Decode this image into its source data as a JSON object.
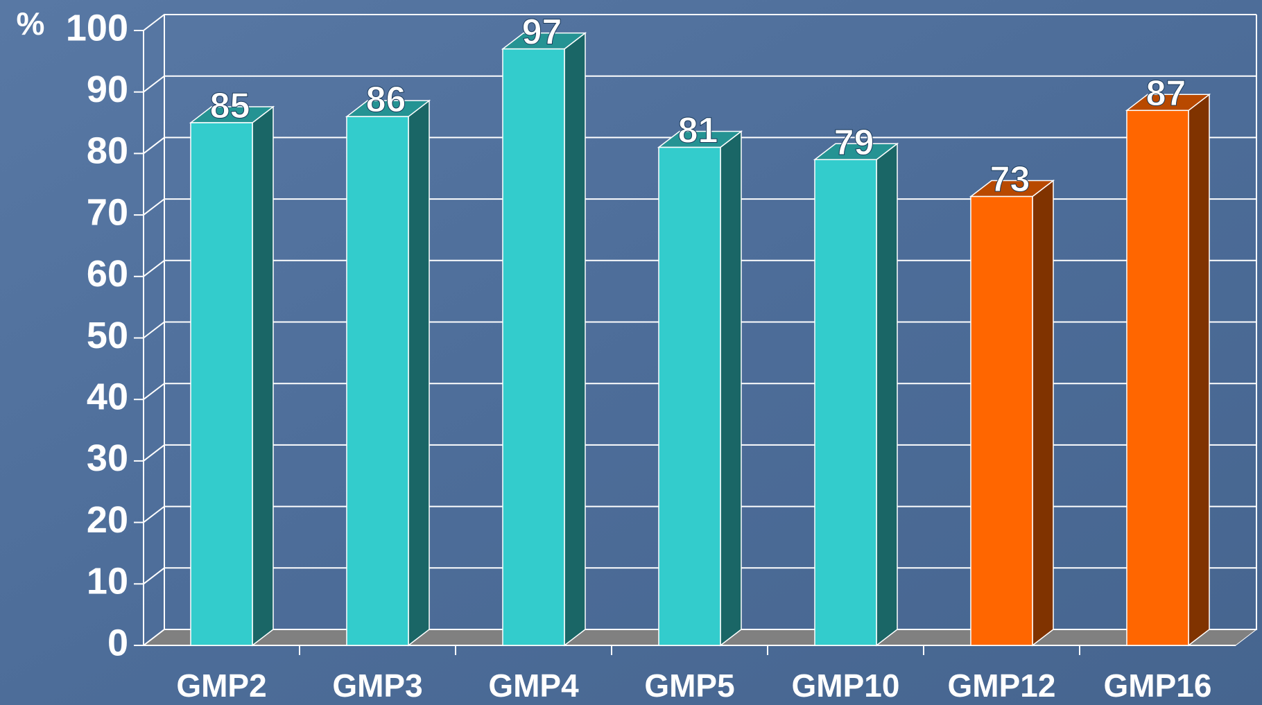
{
  "chart_data": {
    "type": "bar3d",
    "y_label": "%",
    "categories": [
      "GMP2",
      "GMP3",
      "GMP4",
      "GMP5",
      "GMP10",
      "GMP12",
      "GMP16"
    ],
    "values": [
      85,
      86,
      97,
      81,
      79,
      73,
      87
    ],
    "colors": [
      "#33cccc",
      "#33cccc",
      "#33cccc",
      "#33cccc",
      "#33cccc",
      "#ff6600",
      "#ff6600"
    ],
    "ylim": [
      0,
      100
    ],
    "yticks": [
      0,
      10,
      20,
      30,
      40,
      50,
      60,
      70,
      80,
      90,
      100
    ],
    "grid": true
  }
}
